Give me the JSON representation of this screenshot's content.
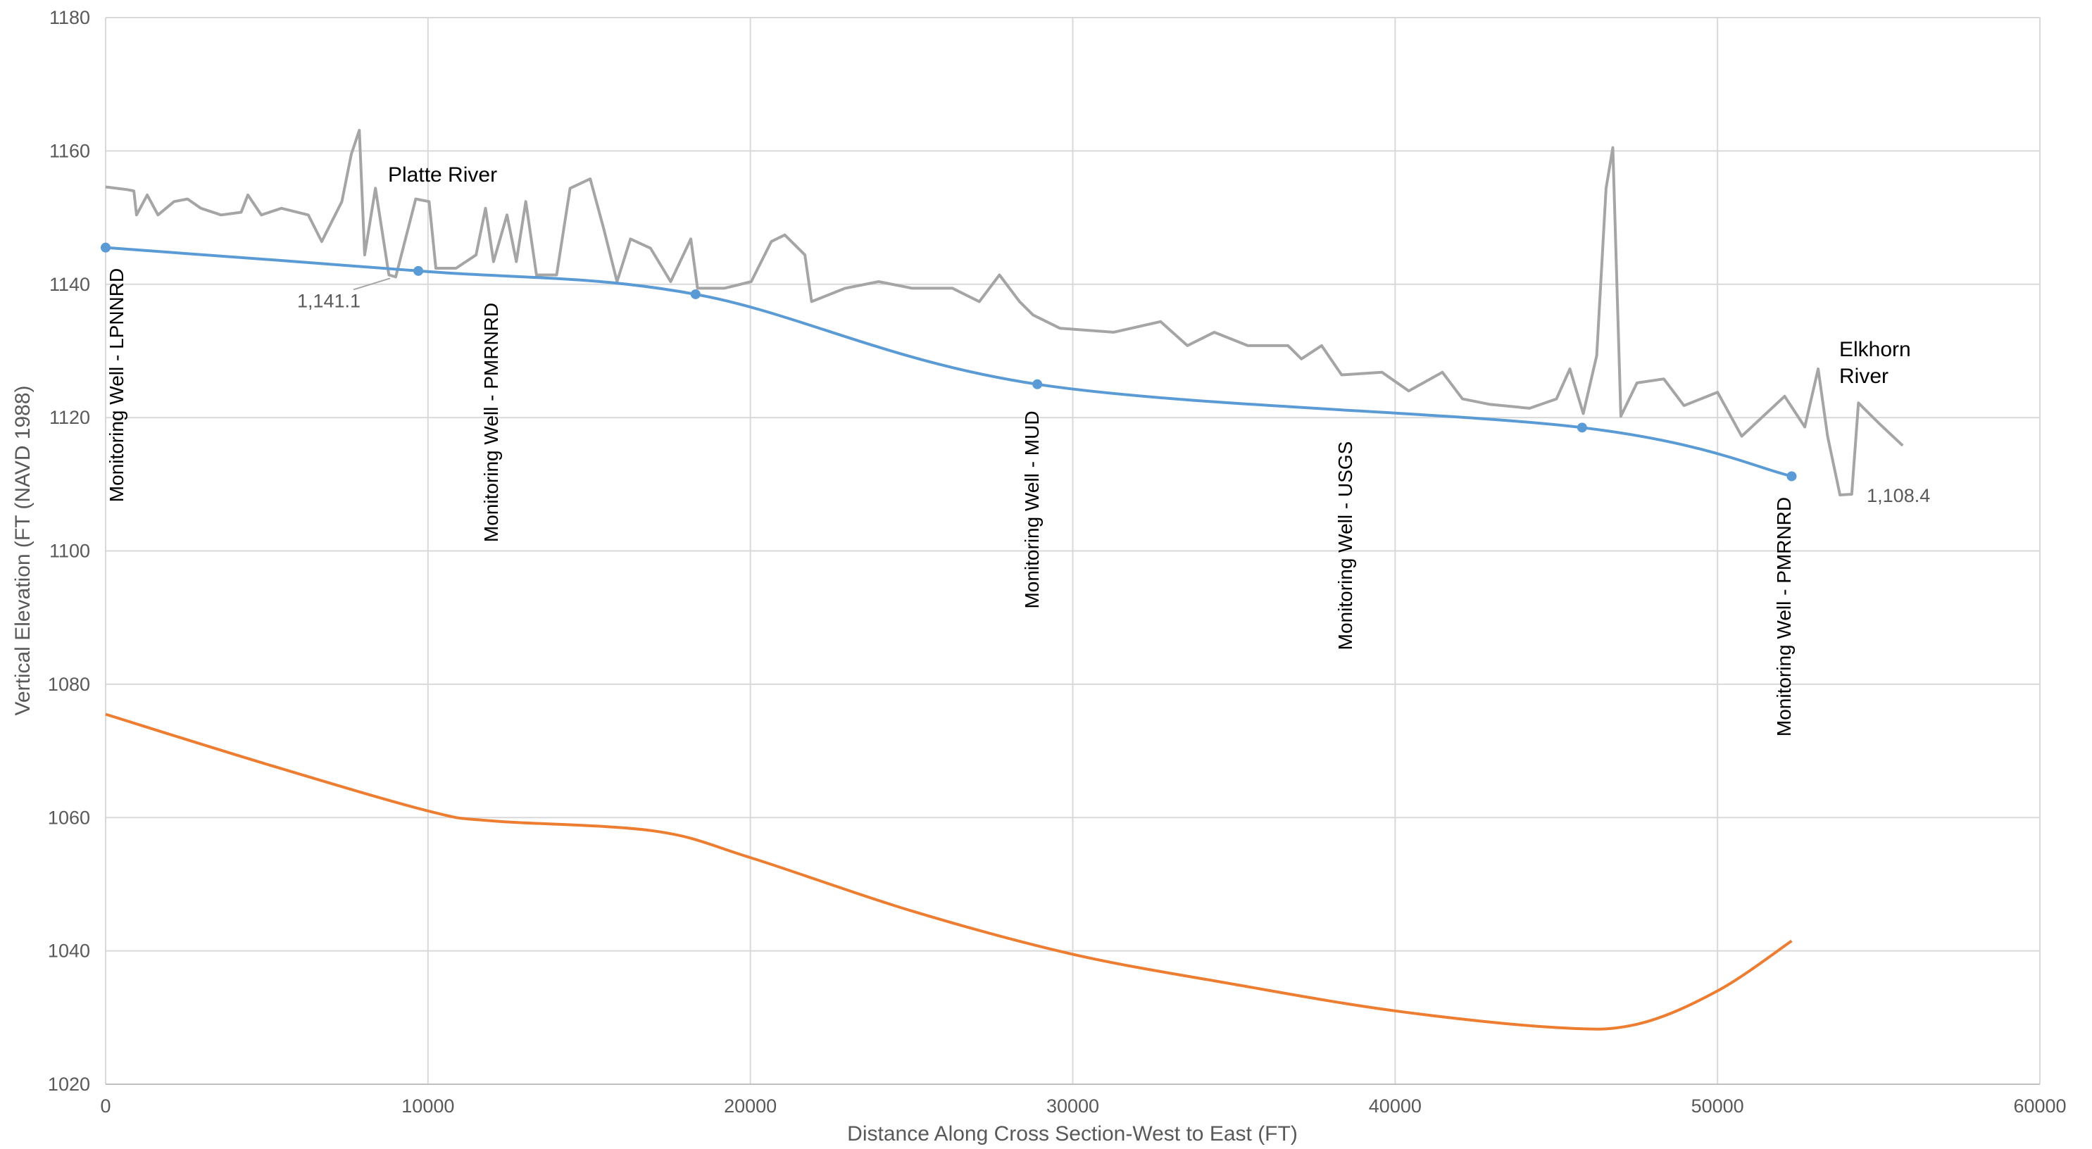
{
  "chart_data": {
    "type": "line",
    "x_label": "Distance Along Cross Section-West to East (FT)",
    "y_label": "Vertical Elevation (FT (NAVD 1988)",
    "xlim": [
      0,
      60000
    ],
    "ylim": [
      1020,
      1180
    ],
    "xticks": [
      0,
      10000,
      20000,
      30000,
      40000,
      50000,
      60000
    ],
    "yticks": [
      1020,
      1040,
      1060,
      1080,
      1100,
      1120,
      1140,
      1160,
      1180
    ],
    "grid": true,
    "series": [
      {
        "color": "#a5a5a5",
        "smooth": false,
        "markers": false,
        "x": [
          0,
          666,
          875,
          958,
          1290,
          1624,
          2123,
          2540,
          2956,
          3580,
          4205,
          4413,
          4829,
          5454,
          6287,
          6703,
          7328,
          7620,
          7870,
          8036,
          8369,
          8786,
          9000,
          9619,
          10035,
          10243,
          10868,
          11492,
          11784,
          12033,
          12450,
          12741,
          13033,
          13366,
          13990,
          14406,
          15031,
          15447,
          15863,
          16280,
          16904,
          17529,
          18153,
          18361,
          19193,
          20026,
          20650,
          21066,
          21691,
          21899,
          22940,
          23980,
          25021,
          26270,
          27102,
          27727,
          28351,
          28767,
          29600,
          31265,
          32723,
          33555,
          34388,
          35428,
          36677,
          37093,
          37718,
          38342,
          39591,
          40424,
          41465,
          42089,
          42922,
          44171,
          45004,
          45420,
          45836,
          46252,
          46544,
          46752,
          47002,
          47502,
          48334,
          48959,
          50000,
          50749,
          52082,
          52706,
          53122,
          53414,
          53800,
          54164,
          54372,
          54997,
          55746
        ],
        "values": [
          1154.6,
          1154.2,
          1154,
          1150.4,
          1153.4,
          1150.4,
          1152.4,
          1152.8,
          1151.4,
          1150.4,
          1150.8,
          1153.4,
          1150.4,
          1151.4,
          1150.4,
          1146.4,
          1152.4,
          1159.5,
          1163.1,
          1144.4,
          1154.4,
          1141.4,
          1141.1,
          1152.8,
          1152.4,
          1142.4,
          1142.4,
          1144.4,
          1151.4,
          1143.4,
          1150.4,
          1143.4,
          1152.4,
          1141.4,
          1141.4,
          1154.4,
          1155.8,
          1148.4,
          1140.4,
          1146.8,
          1145.4,
          1140.4,
          1146.8,
          1139.4,
          1139.4,
          1140.4,
          1146.4,
          1147.4,
          1144.4,
          1137.4,
          1139.4,
          1140.4,
          1139.4,
          1139.4,
          1137.4,
          1141.4,
          1137.4,
          1135.4,
          1133.4,
          1132.8,
          1134.4,
          1130.8,
          1132.8,
          1130.8,
          1130.8,
          1128.8,
          1130.8,
          1126.4,
          1126.8,
          1124.0,
          1126.8,
          1122.8,
          1122.0,
          1121.4,
          1122.8,
          1127.3,
          1120.6,
          1129.3,
          1154.4,
          1160.5,
          1120.2,
          1125.2,
          1125.8,
          1121.8,
          1123.8,
          1117.2,
          1123.2,
          1118.6,
          1127.3,
          1117.2,
          1108.4,
          1108.5,
          1122.2,
          1119.2,
          1115.8
        ],
        "value_labels": [
          null,
          null,
          null,
          null,
          null,
          null,
          null,
          null,
          null,
          null,
          null,
          null,
          null,
          null,
          null,
          null,
          null,
          null,
          null,
          null,
          null,
          null,
          "1,141.1",
          null,
          null,
          null,
          null,
          null,
          null,
          null,
          null,
          null,
          null,
          null,
          null,
          null,
          null,
          null,
          null,
          null,
          null,
          null,
          null,
          null,
          null,
          null,
          null,
          null,
          null,
          null,
          null,
          null,
          null,
          null,
          null,
          null,
          null,
          null,
          null,
          null,
          null,
          null,
          null,
          null,
          null,
          null,
          null,
          null,
          null,
          null,
          null,
          null,
          null,
          null,
          null,
          null,
          null,
          null,
          null,
          null,
          null,
          null,
          null,
          null,
          null,
          null,
          null,
          null,
          null,
          null,
          "1,108.4",
          null,
          null,
          null,
          null
        ]
      },
      {
        "color": "#5b9bd5",
        "smooth": true,
        "markers": true,
        "x": [
          0,
          9700,
          18300,
          28900,
          45800,
          52300
        ],
        "values": [
          1145.5,
          1142,
          1138.5,
          1125,
          1118.5,
          1111.2
        ]
      },
      {
        "color": "#ed7d31",
        "smooth": true,
        "markers": false,
        "x": [
          0,
          5000,
          10000,
          12000,
          17000,
          20000,
          25000,
          30000,
          35000,
          40000,
          45000,
          47500,
          50000,
          52300
        ],
        "values": [
          1075.5,
          1068,
          1061,
          1059.5,
          1058,
          1054,
          1046,
          1039.5,
          1035,
          1031,
          1028.5,
          1029,
          1034,
          1041.5
        ]
      }
    ],
    "well_labels": [
      "Monitoring Well - LPNNRD",
      "Monitoring Well - PMRNRD",
      "Monitoring Well - MUD",
      "Monitoring Well - USGS",
      "Monitoring Well - PMRNRD"
    ],
    "river_labels": [
      "Platte River",
      "Elkhorn River"
    ]
  }
}
